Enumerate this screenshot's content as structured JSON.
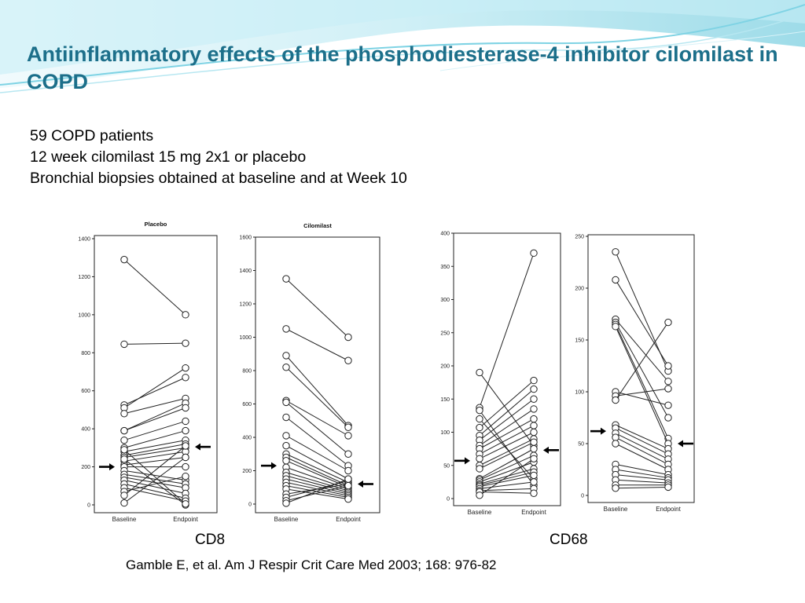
{
  "slide": {
    "title": "Antiinflammatory effects of the phosphodiesterase-4 inhibitor cilomilast in COPD",
    "bullets": [
      "59 COPD patients",
      "12 week cilomilast 15 mg 2x1 or placebo",
      "Bronchial biopsies obtained at baseline and at Week 10"
    ],
    "figure_labels": {
      "cd8": "CD8",
      "cd68": "CD68"
    },
    "citation": "Gamble E, et al. Am J Respir Crit Care Med 2003; 168: 976-82",
    "colors": {
      "title": "#1c6f8a",
      "header_accent": "#5ec5d8"
    }
  },
  "chart_data": [
    {
      "type": "line",
      "title": "Placebo",
      "categories": [
        "Baseline",
        "Endpoint"
      ],
      "ylim": [
        0,
        1400
      ],
      "yticks": [
        0,
        200,
        400,
        600,
        800,
        1000,
        1200,
        1400
      ],
      "arrow_values": {
        "baseline": 200,
        "endpoint": 305
      },
      "series": [
        {
          "values": [
            1290,
            1000
          ]
        },
        {
          "values": [
            845,
            850
          ]
        },
        {
          "values": [
            525,
            670
          ]
        },
        {
          "values": [
            510,
            720
          ]
        },
        {
          "values": [
            480,
            560
          ]
        },
        {
          "values": [
            390,
            535
          ]
        },
        {
          "values": [
            390,
            510
          ]
        },
        {
          "values": [
            340,
            440
          ]
        },
        {
          "values": [
            300,
            390
          ]
        },
        {
          "values": [
            280,
            340
          ]
        },
        {
          "values": [
            260,
            320
          ]
        },
        {
          "values": [
            250,
            300
          ]
        },
        {
          "values": [
            230,
            280
          ]
        },
        {
          "values": [
            210,
            250
          ]
        },
        {
          "values": [
            200,
            200
          ]
        },
        {
          "values": [
            180,
            130
          ]
        },
        {
          "values": [
            160,
            110
          ]
        },
        {
          "values": [
            145,
            90
          ]
        },
        {
          "values": [
            130,
            60
          ]
        },
        {
          "values": [
            110,
            35
          ]
        },
        {
          "values": [
            90,
            20
          ]
        },
        {
          "values": [
            70,
            150
          ]
        },
        {
          "values": [
            50,
            310
          ]
        },
        {
          "values": [
            10,
            250
          ]
        },
        {
          "values": [
            240,
            0
          ]
        },
        {
          "values": [
            290,
            5
          ]
        }
      ]
    },
    {
      "type": "line",
      "title": "Cilomilast",
      "categories": [
        "Baseline",
        "Endpoint"
      ],
      "ylim": [
        0,
        1600
      ],
      "yticks": [
        0,
        200,
        400,
        600,
        800,
        1000,
        1200,
        1400,
        1600
      ],
      "arrow_values": {
        "baseline": 230,
        "endpoint": 120
      },
      "series": [
        {
          "values": [
            1350,
            1000
          ]
        },
        {
          "values": [
            1050,
            860
          ]
        },
        {
          "values": [
            890,
            470
          ]
        },
        {
          "values": [
            820,
            460
          ]
        },
        {
          "values": [
            620,
            410
          ]
        },
        {
          "values": [
            610,
            300
          ]
        },
        {
          "values": [
            520,
            230
          ]
        },
        {
          "values": [
            410,
            200
          ]
        },
        {
          "values": [
            350,
            150
          ]
        },
        {
          "values": [
            300,
            130
          ]
        },
        {
          "values": [
            280,
            110
          ]
        },
        {
          "values": [
            260,
            100
          ]
        },
        {
          "values": [
            220,
            90
          ]
        },
        {
          "values": [
            190,
            80
          ]
        },
        {
          "values": [
            170,
            70
          ]
        },
        {
          "values": [
            150,
            60
          ]
        },
        {
          "values": [
            130,
            50
          ]
        },
        {
          "values": [
            110,
            40
          ]
        },
        {
          "values": [
            90,
            30
          ]
        },
        {
          "values": [
            60,
            120
          ]
        },
        {
          "values": [
            40,
            140
          ]
        },
        {
          "values": [
            20,
            110
          ]
        },
        {
          "values": [
            5,
            150
          ]
        }
      ]
    },
    {
      "type": "line",
      "title": "",
      "categories": [
        "Baseline",
        "Endpoint"
      ],
      "ylim": [
        0,
        400
      ],
      "yticks": [
        0,
        50,
        100,
        150,
        200,
        250,
        300,
        350,
        400
      ],
      "arrow_values": {
        "baseline": 57,
        "endpoint": 73
      },
      "series": [
        {
          "values": [
            190,
            80
          ]
        },
        {
          "values": [
            137,
            370
          ]
        },
        {
          "values": [
            133,
            20
          ]
        },
        {
          "values": [
            120,
            30
          ]
        },
        {
          "values": [
            107,
            178
          ]
        },
        {
          "values": [
            95,
            165
          ]
        },
        {
          "values": [
            88,
            150
          ]
        },
        {
          "values": [
            80,
            135
          ]
        },
        {
          "values": [
            75,
            120
          ]
        },
        {
          "values": [
            67,
            110
          ]
        },
        {
          "values": [
            60,
            100
          ]
        },
        {
          "values": [
            50,
            90
          ]
        },
        {
          "values": [
            45,
            85
          ]
        },
        {
          "values": [
            30,
            75
          ]
        },
        {
          "values": [
            28,
            65
          ]
        },
        {
          "values": [
            25,
            55
          ]
        },
        {
          "values": [
            22,
            45
          ]
        },
        {
          "values": [
            20,
            40
          ]
        },
        {
          "values": [
            18,
            35
          ]
        },
        {
          "values": [
            15,
            25
          ]
        },
        {
          "values": [
            12,
            15
          ]
        },
        {
          "values": [
            10,
            8
          ]
        },
        {
          "values": [
            5,
            60
          ]
        }
      ]
    },
    {
      "type": "line",
      "title": "",
      "categories": [
        "Baseline",
        "Endpoint"
      ],
      "ylim": [
        0,
        250
      ],
      "yticks": [
        0,
        50,
        100,
        150,
        200,
        250
      ],
      "arrow_values": {
        "baseline": 62,
        "endpoint": 50
      },
      "series": [
        {
          "values": [
            235,
            120
          ]
        },
        {
          "values": [
            208,
            125
          ]
        },
        {
          "values": [
            170,
            110
          ]
        },
        {
          "values": [
            167,
            75
          ]
        },
        {
          "values": [
            165,
            55
          ]
        },
        {
          "values": [
            163,
            50
          ]
        },
        {
          "values": [
            100,
            87
          ]
        },
        {
          "values": [
            96,
            103
          ]
        },
        {
          "values": [
            92,
            167
          ]
        },
        {
          "values": [
            68,
            45
          ]
        },
        {
          "values": [
            65,
            40
          ]
        },
        {
          "values": [
            60,
            35
          ]
        },
        {
          "values": [
            56,
            30
          ]
        },
        {
          "values": [
            50,
            25
          ]
        },
        {
          "values": [
            30,
            20
          ]
        },
        {
          "values": [
            25,
            17
          ]
        },
        {
          "values": [
            20,
            15
          ]
        },
        {
          "values": [
            15,
            12
          ]
        },
        {
          "values": [
            10,
            10
          ]
        },
        {
          "values": [
            7,
            8
          ]
        }
      ]
    }
  ]
}
